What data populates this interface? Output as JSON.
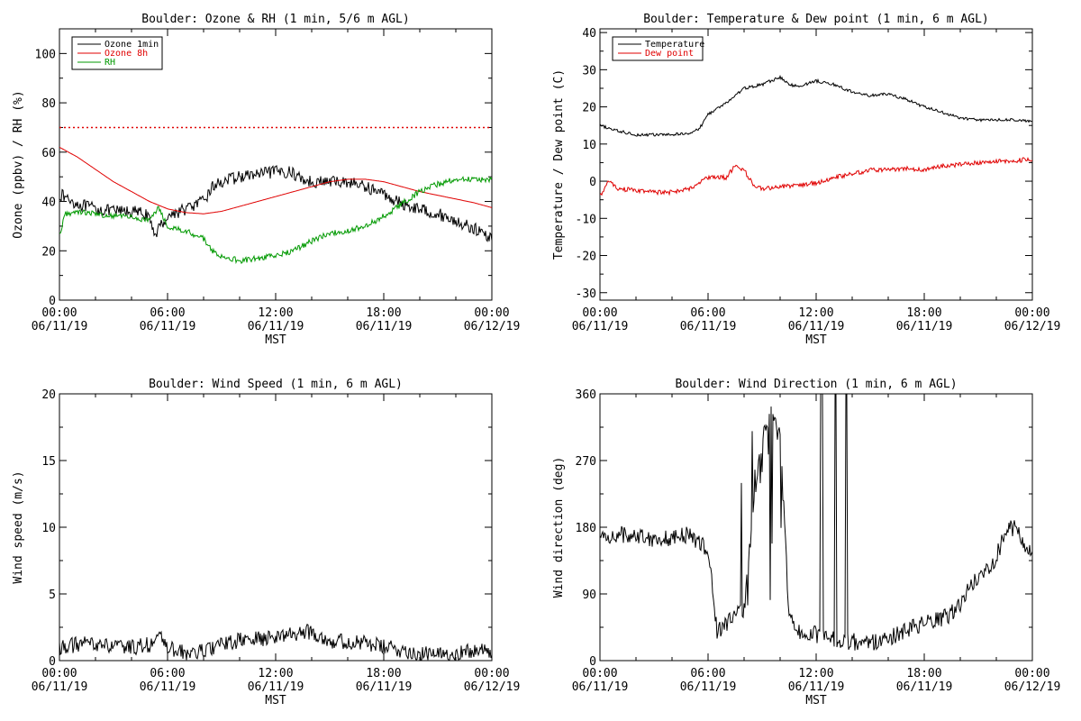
{
  "colors": {
    "ozone_1min": "#000000",
    "ozone_8h": "#e00000",
    "rh": "#009900",
    "temperature": "#000000",
    "dew_point": "#e00000",
    "wind": "#000000",
    "threshold": "#e00000"
  },
  "x_axis": {
    "label": "MST",
    "ticks": [
      "00:00",
      "06:00",
      "12:00",
      "18:00",
      "00:00"
    ],
    "dates": [
      "06/11/19",
      "06/11/19",
      "06/11/19",
      "06/11/19",
      "06/12/19"
    ]
  },
  "chart_data": [
    {
      "id": "ozone_rh",
      "type": "line",
      "title": "Boulder: Ozone & RH (1 min, 5/6 m AGL)",
      "xlabel": "MST",
      "ylabel": "Ozone (ppbv) / RH (%)",
      "xlim": [
        0,
        24
      ],
      "ylim": [
        0,
        110
      ],
      "yticks": [
        "0",
        "20",
        "40",
        "60",
        "80",
        "100"
      ],
      "ytick_values": [
        0,
        20,
        40,
        60,
        80,
        100
      ],
      "legend": "top-left",
      "reference_line": {
        "value": 70,
        "style": "dotted"
      },
      "series": [
        {
          "name": "Ozone 1min",
          "color": "#000000",
          "noise": 2.5,
          "x": [
            0,
            1,
            2,
            3,
            4,
            4.8,
            5.3,
            6,
            7,
            8,
            8.5,
            9,
            10,
            11,
            12,
            12.8,
            13.5,
            14,
            15,
            16,
            17,
            18,
            19,
            20,
            21,
            22,
            23,
            24
          ],
          "y": [
            43,
            39,
            37,
            36,
            36,
            35,
            27,
            34,
            37,
            40,
            46,
            48,
            50,
            51,
            52,
            52,
            49,
            48,
            48,
            48,
            46,
            43,
            39,
            37,
            35,
            32,
            29,
            25
          ]
        },
        {
          "name": "Ozone 8h",
          "color": "#e00000",
          "noise": 0,
          "x": [
            0,
            1,
            2,
            3,
            4,
            5,
            6,
            7,
            8,
            9,
            10,
            11,
            12,
            13,
            14,
            15,
            16,
            17,
            18,
            19,
            20,
            21,
            22,
            23,
            24
          ],
          "y": [
            62,
            58,
            53,
            48,
            44,
            40,
            37,
            35.5,
            35,
            36,
            38,
            40,
            42,
            44,
            46,
            48,
            49,
            49,
            48,
            46,
            44,
            42.5,
            41,
            39.5,
            37.5
          ]
        },
        {
          "name": "RH",
          "color": "#009900",
          "noise": 1.2,
          "x": [
            0,
            0.3,
            1,
            2,
            3,
            4,
            5,
            5.5,
            6,
            7,
            8,
            8.5,
            9,
            10,
            11,
            12,
            13,
            14,
            15,
            16,
            17,
            18,
            19,
            20,
            21,
            22,
            23,
            24
          ],
          "y": [
            26,
            35,
            36,
            35,
            34,
            34,
            32,
            38,
            30,
            28,
            25,
            20,
            18,
            16,
            17,
            18,
            20,
            24,
            27,
            28,
            30,
            34,
            39,
            44,
            47,
            49,
            49,
            49
          ]
        }
      ]
    },
    {
      "id": "temp_dew",
      "type": "line",
      "title": "Boulder: Temperature & Dew point (1 min, 6 m AGL)",
      "xlabel": "MST",
      "ylabel": "Temperature / Dew point (C)",
      "xlim": [
        0,
        24
      ],
      "ylim": [
        -32,
        41
      ],
      "yticks": [
        "-30",
        "-20",
        "-10",
        "0",
        "10",
        "20",
        "30",
        "40"
      ],
      "ytick_values": [
        -30,
        -20,
        -10,
        0,
        10,
        20,
        30,
        40
      ],
      "legend": "top-left",
      "series": [
        {
          "name": "Temperature",
          "color": "#000000",
          "noise": 0.4,
          "x": [
            0,
            1,
            2,
            3,
            4,
            5,
            5.5,
            6,
            7,
            8,
            9,
            10,
            10.5,
            11,
            12,
            13,
            14,
            15,
            16,
            17,
            18,
            19,
            20,
            21,
            22,
            23,
            24
          ],
          "y": [
            15,
            13.5,
            12.5,
            12.5,
            12.5,
            13,
            14,
            18,
            21,
            25,
            26,
            28,
            26,
            25.5,
            27,
            26,
            24,
            23,
            23.5,
            22,
            20,
            18.5,
            17,
            16.5,
            16.5,
            16.5,
            16
          ]
        },
        {
          "name": "Dew point",
          "color": "#e00000",
          "noise": 0.6,
          "x": [
            0,
            0.5,
            1,
            2,
            3,
            4,
            5,
            6,
            7,
            7.5,
            8,
            8.5,
            9,
            10,
            11,
            12,
            13,
            14,
            15,
            16,
            17,
            18,
            19,
            20,
            21,
            22,
            23,
            24
          ],
          "y": [
            -4,
            0,
            -2,
            -2.5,
            -3,
            -3,
            -2,
            1,
            1,
            4,
            3,
            -1,
            -2,
            -1.5,
            -1,
            -0.5,
            1,
            2,
            3,
            3,
            3.5,
            3,
            4,
            4.5,
            5,
            5.5,
            5.5,
            6
          ]
        }
      ]
    },
    {
      "id": "wind_speed",
      "type": "line",
      "title": "Boulder: Wind Speed (1 min, 6 m AGL)",
      "xlabel": "MST",
      "ylabel": "Wind speed (m/s)",
      "xlim": [
        0,
        24
      ],
      "ylim": [
        0,
        20
      ],
      "yticks": [
        "0",
        "5",
        "10",
        "15",
        "20"
      ],
      "ytick_values": [
        0,
        5,
        10,
        15,
        20
      ],
      "series": [
        {
          "name": "Wind speed",
          "color": "#000000",
          "noise": 0.6,
          "x": [
            0,
            1,
            2,
            3,
            4,
            5,
            5.5,
            6,
            7,
            8,
            9,
            10,
            11,
            12,
            13,
            14,
            15,
            16,
            17,
            18,
            19,
            20,
            21,
            22,
            23,
            24
          ],
          "y": [
            1.0,
            1.2,
            1.3,
            1.0,
            1.0,
            1.2,
            1.8,
            1.0,
            0.5,
            0.7,
            1.2,
            1.5,
            1.6,
            1.8,
            2.0,
            2.2,
            1.5,
            1.4,
            1.3,
            1.0,
            0.8,
            0.5,
            0.4,
            0.6,
            0.7,
            0.7
          ]
        }
      ]
    },
    {
      "id": "wind_direction",
      "type": "line",
      "title": "Boulder: Wind Direction (1 min, 6 m AGL)",
      "xlabel": "MST",
      "ylabel": "Wind direction (deg)",
      "xlim": [
        0,
        24
      ],
      "ylim": [
        0,
        360
      ],
      "yticks": [
        "0",
        "90",
        "180",
        "270",
        "360"
      ],
      "ytick_values": [
        0,
        90,
        180,
        270,
        360
      ],
      "series": [
        {
          "name": "Wind direction",
          "color": "#000000",
          "noise": 12,
          "x": [
            0,
            1,
            2,
            3,
            4,
            5,
            6,
            6.5,
            7,
            8,
            8.5,
            9,
            9.5,
            10,
            10.5,
            11,
            12,
            13,
            14,
            15,
            16,
            17,
            18,
            19,
            20,
            20.5,
            21,
            22,
            22.5,
            23,
            24
          ],
          "y": [
            165,
            170,
            170,
            165,
            165,
            170,
            150,
            40,
            50,
            70,
            200,
            300,
            330,
            300,
            60,
            40,
            35,
            30,
            25,
            25,
            30,
            40,
            50,
            55,
            75,
            100,
            110,
            140,
            175,
            180,
            140
          ]
        }
      ]
    }
  ]
}
